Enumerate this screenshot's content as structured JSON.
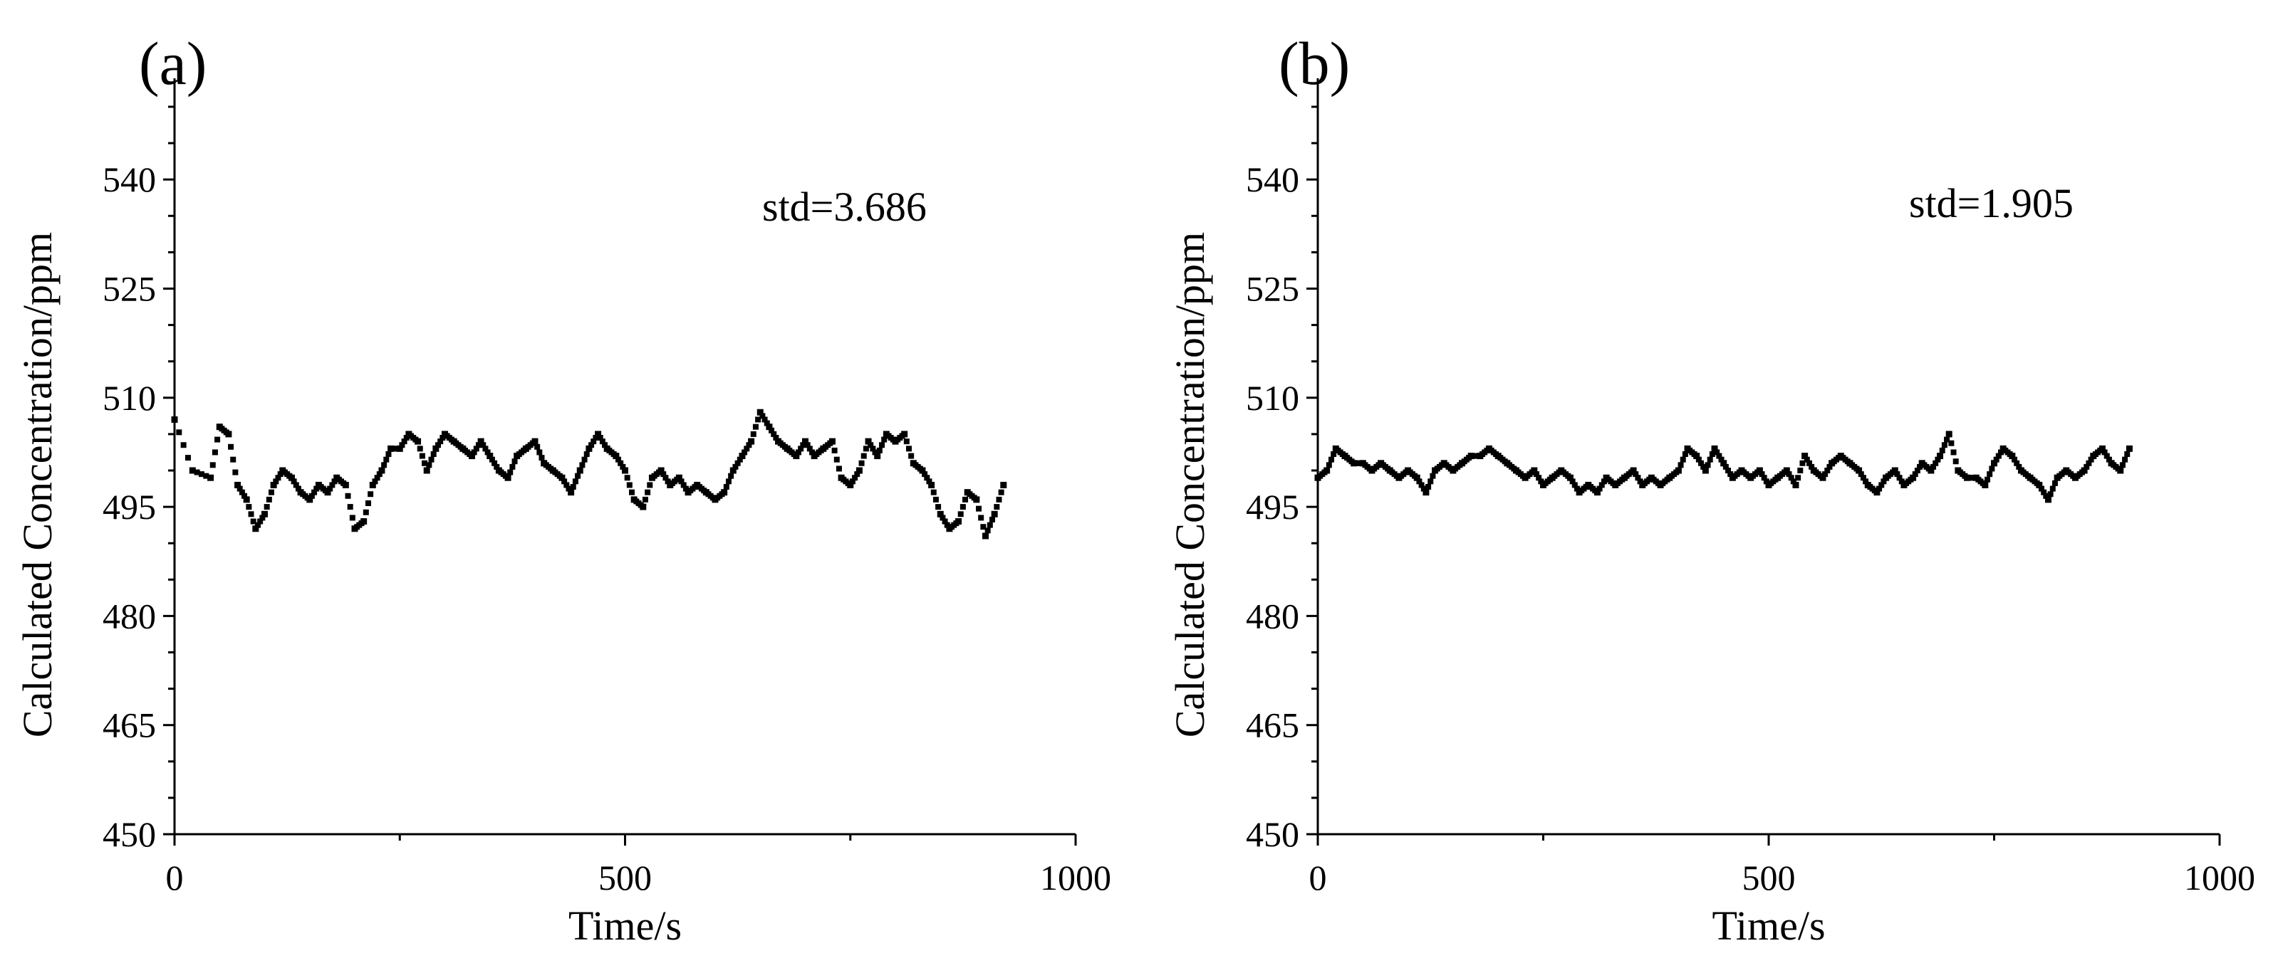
{
  "chart_data": [
    {
      "type": "scatter",
      "panel_label": "(a)",
      "annotation": "std=3.686",
      "xlabel": "Time/s",
      "ylabel": "Calculated Concentration/ppm",
      "xlim": [
        0,
        1000
      ],
      "ylim": [
        450,
        550
      ],
      "xticks": [
        0,
        500,
        1000
      ],
      "yticks": [
        450,
        465,
        480,
        495,
        510,
        525,
        540
      ],
      "xtick_labels": [
        "0",
        "500",
        "1000"
      ],
      "ytick_labels": [
        "450",
        "465",
        "480",
        "495",
        "510",
        "525",
        "540"
      ],
      "grid": false,
      "series": [
        {
          "color": "#000000",
          "x": [
            0,
            20,
            40,
            50,
            60,
            70,
            80,
            90,
            100,
            110,
            120,
            130,
            140,
            150,
            160,
            170,
            180,
            190,
            200,
            210,
            220,
            230,
            240,
            250,
            260,
            270,
            280,
            290,
            300,
            310,
            320,
            330,
            340,
            350,
            360,
            370,
            380,
            390,
            400,
            410,
            420,
            430,
            440,
            450,
            460,
            470,
            480,
            490,
            500,
            510,
            520,
            530,
            540,
            550,
            560,
            570,
            580,
            590,
            600,
            610,
            620,
            630,
            640,
            650,
            660,
            670,
            680,
            690,
            700,
            710,
            720,
            730,
            740,
            750,
            760,
            770,
            780,
            790,
            800,
            810,
            820,
            830,
            840,
            850,
            860,
            870,
            880,
            890,
            900,
            910,
            920
          ],
          "y": [
            507,
            500,
            499,
            506,
            505,
            498,
            496,
            492,
            494,
            498,
            500,
            499,
            497,
            496,
            498,
            497,
            499,
            498,
            492,
            493,
            498,
            500,
            503,
            503,
            505,
            504,
            500,
            503,
            505,
            504,
            503,
            502,
            504,
            502,
            500,
            499,
            502,
            503,
            504,
            501,
            500,
            499,
            497,
            500,
            503,
            505,
            503,
            502,
            500,
            496,
            495,
            499,
            500,
            498,
            499,
            497,
            498,
            497,
            496,
            497,
            500,
            502,
            504,
            508,
            506,
            504,
            503,
            502,
            504,
            502,
            503,
            504,
            499,
            498,
            500,
            504,
            502,
            505,
            504,
            505,
            501,
            500,
            498,
            494,
            492,
            493,
            497,
            496,
            491,
            494,
            498
          ]
        }
      ]
    },
    {
      "type": "scatter",
      "panel_label": "(b)",
      "annotation": "std=1.905",
      "xlabel": "Time/s",
      "ylabel": "Calculated Concentration/ppm",
      "xlim": [
        0,
        1000
      ],
      "ylim": [
        450,
        550
      ],
      "xticks": [
        0,
        500,
        1000
      ],
      "yticks": [
        450,
        465,
        480,
        495,
        510,
        525,
        540
      ],
      "xtick_labels": [
        "0",
        "500",
        "1000"
      ],
      "ytick_labels": [
        "450",
        "465",
        "480",
        "495",
        "510",
        "525",
        "540"
      ],
      "grid": false,
      "series": [
        {
          "color": "#000000",
          "x": [
            0,
            10,
            20,
            30,
            40,
            50,
            60,
            70,
            80,
            90,
            100,
            110,
            120,
            130,
            140,
            150,
            160,
            170,
            180,
            190,
            200,
            210,
            220,
            230,
            240,
            250,
            260,
            270,
            280,
            290,
            300,
            310,
            320,
            330,
            340,
            350,
            360,
            370,
            380,
            390,
            400,
            410,
            420,
            430,
            440,
            450,
            460,
            470,
            480,
            490,
            500,
            510,
            520,
            530,
            540,
            550,
            560,
            570,
            580,
            590,
            600,
            610,
            620,
            630,
            640,
            650,
            660,
            670,
            680,
            690,
            700,
            710,
            720,
            730,
            740,
            750,
            760,
            770,
            780,
            790,
            800,
            810,
            820,
            830,
            840,
            850,
            860,
            870,
            880,
            890,
            900
          ],
          "y": [
            499,
            500,
            503,
            502,
            501,
            501,
            500,
            501,
            500,
            499,
            500,
            499,
            497,
            500,
            501,
            500,
            501,
            502,
            502,
            503,
            502,
            501,
            500,
            499,
            500,
            498,
            499,
            500,
            499,
            497,
            498,
            497,
            499,
            498,
            499,
            500,
            498,
            499,
            498,
            499,
            500,
            503,
            502,
            500,
            503,
            501,
            499,
            500,
            499,
            500,
            498,
            499,
            500,
            498,
            502,
            500,
            499,
            501,
            502,
            501,
            500,
            498,
            497,
            499,
            500,
            498,
            499,
            501,
            500,
            502,
            505,
            500,
            499,
            499,
            498,
            501,
            503,
            502,
            500,
            499,
            498,
            496,
            499,
            500,
            499,
            500,
            502,
            503,
            501,
            500,
            503
          ]
        }
      ]
    }
  ]
}
